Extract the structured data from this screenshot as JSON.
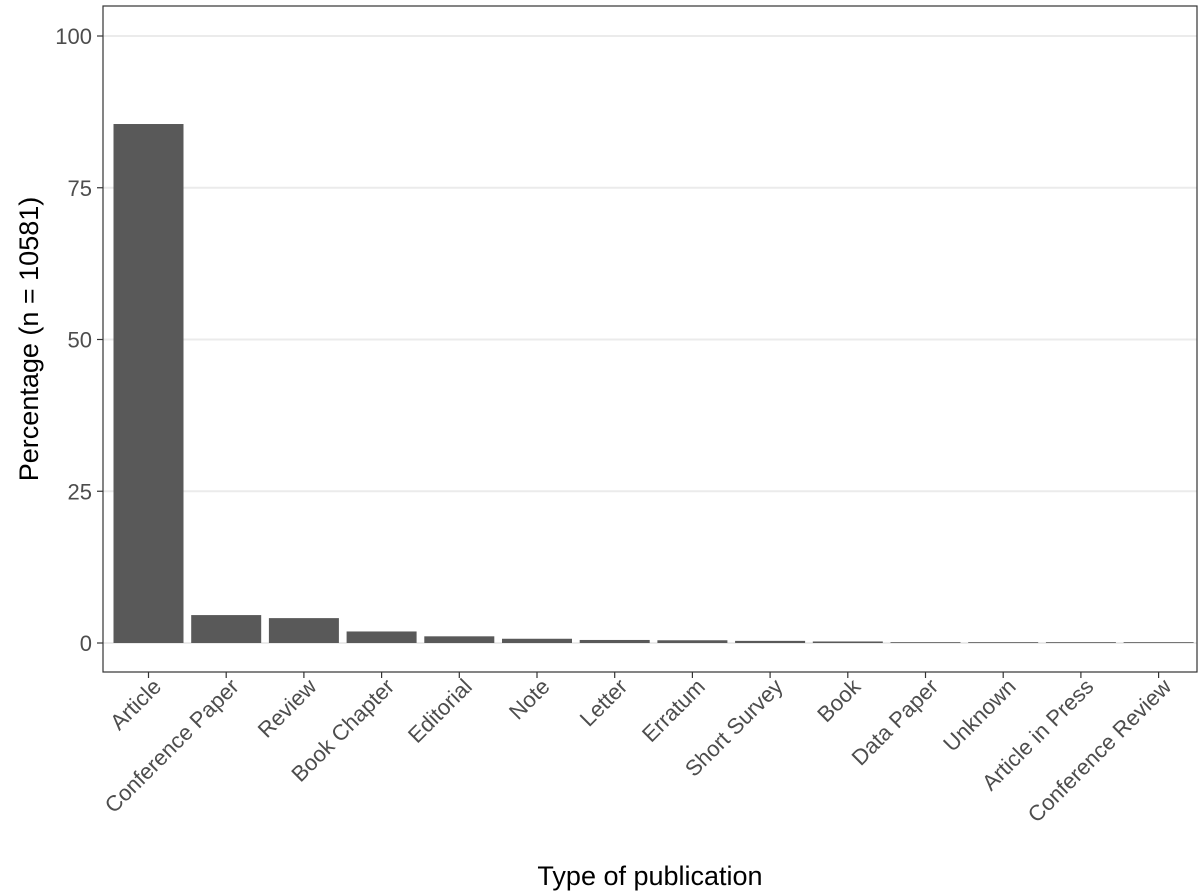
{
  "chart_data": {
    "type": "bar",
    "title": "",
    "xlabel": "Type of publication",
    "ylabel": "Percentage (n = 10581)",
    "ylim": [
      -5,
      105
    ],
    "yticks": [
      0,
      25,
      50,
      75,
      100
    ],
    "grid": true,
    "legend": "none",
    "categories": [
      "Article",
      "Conference Paper",
      "Review",
      "Book Chapter",
      "Editorial",
      "Note",
      "Letter",
      "Erratum",
      "Short Survey",
      "Book",
      "Data Paper",
      "Unknown",
      "Article in Press",
      "Conference Review"
    ],
    "values": [
      85.5,
      4.6,
      4.1,
      1.9,
      1.1,
      0.7,
      0.5,
      0.45,
      0.35,
      0.25,
      0.1,
      0.05,
      0.03,
      0.02
    ],
    "colors": {
      "bar": "#595959",
      "grid": "#ebebeb",
      "panel_border": "#333333",
      "tick_label": "#4d4d4d"
    }
  }
}
